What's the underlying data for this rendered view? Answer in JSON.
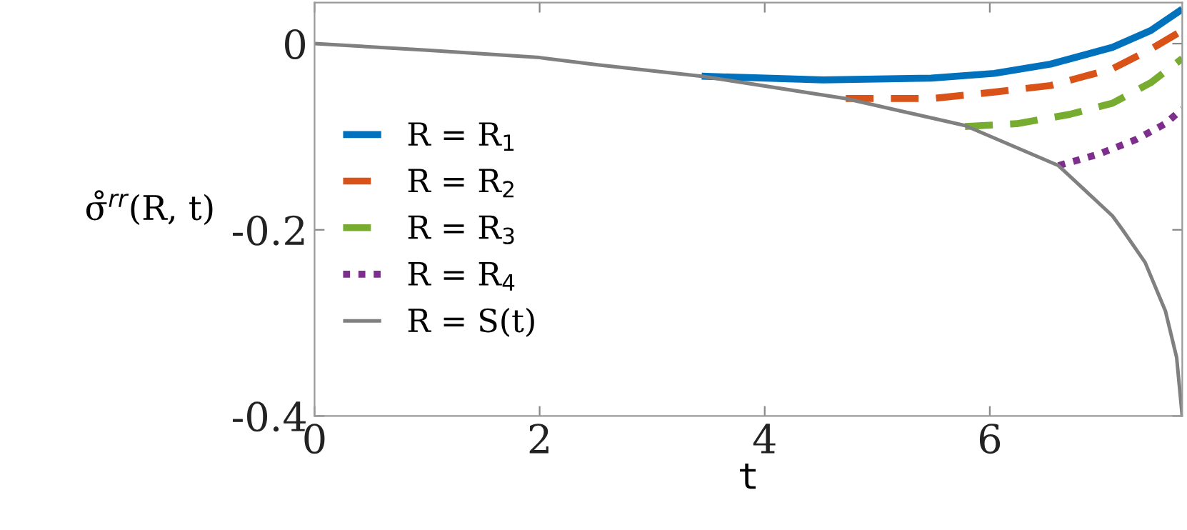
{
  "chart_data": {
    "type": "line",
    "xlabel": "t",
    "ylabel": "σ̊$^{rr}$(R, t)",
    "xlim": [
      0,
      7.71
    ],
    "ylim": [
      -0.4,
      0.044
    ],
    "xticks": [
      0,
      2,
      4,
      6
    ],
    "yticks": [
      {
        "value": -0.4,
        "label": "-0.4"
      },
      {
        "value": -0.2,
        "label": "-0.2"
      },
      0
    ],
    "grid": false,
    "legend": "left",
    "marker": "none",
    "series": [
      {
        "name": "R = R$_{1}$",
        "color": "#0072bd",
        "line_style": "solid",
        "x": [
          3.44,
          4.52,
          5.48,
          6.04,
          6.54,
          7.09,
          7.43,
          7.71
        ],
        "values": [
          -0.035,
          -0.039,
          -0.037,
          -0.032,
          -0.022,
          -0.004,
          0.014,
          0.037
        ]
      },
      {
        "name": "R = R$_{2}$",
        "color": "#d95319",
        "line_style": "dashed",
        "x": [
          4.72,
          5.48,
          6.04,
          6.54,
          7.09,
          7.43,
          7.71
        ],
        "values": [
          -0.059,
          -0.059,
          -0.052,
          -0.045,
          -0.027,
          -0.006,
          0.014
        ]
      },
      {
        "name": "R = R$_{3}$",
        "color": "#77ac30",
        "line_style": "dashed",
        "x": [
          5.78,
          6.24,
          6.71,
          7.09,
          7.43,
          7.71
        ],
        "values": [
          -0.089,
          -0.086,
          -0.076,
          -0.064,
          -0.042,
          -0.016
        ]
      },
      {
        "name": "R = R$_{4}$",
        "color": "#7e2f8e",
        "line_style": "dotted",
        "x": [
          6.61,
          6.96,
          7.3,
          7.56,
          7.71
        ],
        "values": [
          -0.131,
          -0.119,
          -0.103,
          -0.086,
          -0.07
        ]
      },
      {
        "name": "R = S(t)",
        "color": "#808080",
        "line_style": "solid",
        "x": [
          0,
          1,
          2,
          2.53,
          3.44,
          4.72,
          5.78,
          6.61,
          7.09,
          7.18,
          7.38,
          7.56,
          7.66,
          7.71
        ],
        "values": [
          0,
          -0.007,
          -0.015,
          -0.023,
          -0.035,
          -0.059,
          -0.088,
          -0.131,
          -0.185,
          -0.2,
          -0.235,
          -0.287,
          -0.337,
          -0.4
        ]
      }
    ]
  }
}
